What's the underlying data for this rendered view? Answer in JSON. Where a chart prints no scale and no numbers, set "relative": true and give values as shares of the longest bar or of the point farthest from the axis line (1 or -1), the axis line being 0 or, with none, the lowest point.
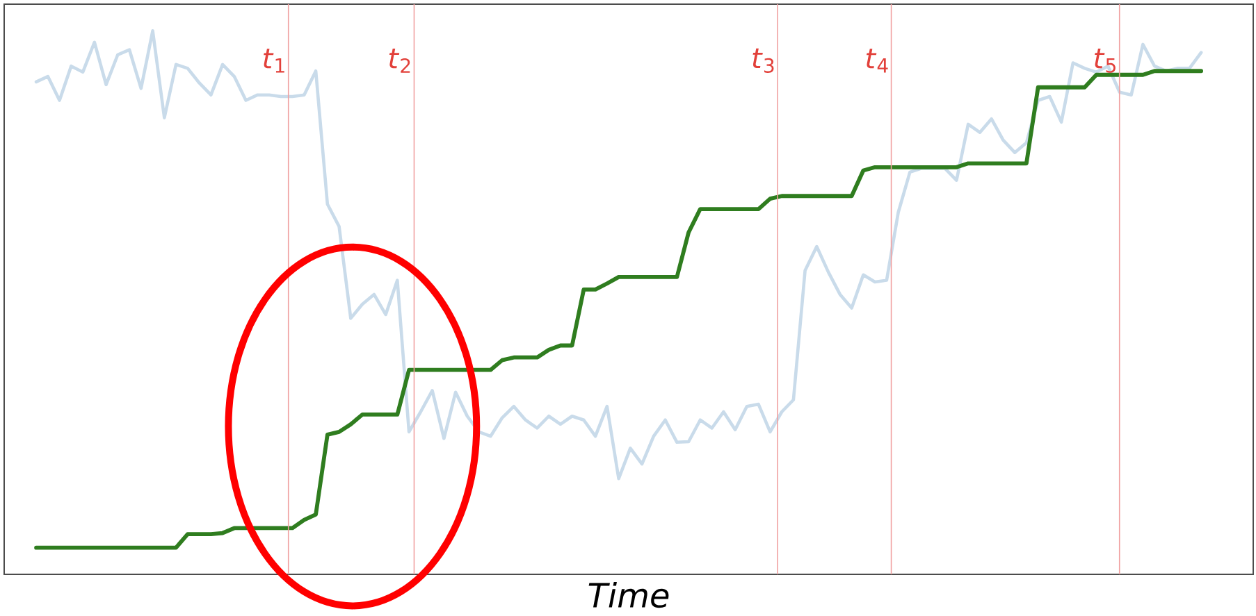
{
  "chart_data": {
    "type": "line",
    "relative": true,
    "xlabel": "Time",
    "tick_labels": false,
    "categories": [
      null,
      null,
      null,
      null,
      null,
      null,
      null,
      null,
      null,
      null,
      null,
      null,
      null,
      null,
      null,
      null,
      null,
      null,
      null,
      null,
      null,
      null,
      null,
      null,
      null,
      null,
      null,
      null,
      null,
      null,
      null,
      null,
      null,
      null,
      null,
      null,
      null,
      null,
      null,
      null,
      null,
      null,
      null,
      null,
      null,
      null,
      null,
      null,
      null,
      null,
      null,
      null,
      null,
      null,
      null,
      null,
      null,
      null,
      null,
      null,
      null,
      null,
      null,
      null,
      null,
      null,
      null,
      null,
      null,
      null,
      null,
      null,
      null,
      null,
      null,
      null,
      null,
      null,
      null,
      null,
      null,
      null,
      null,
      null,
      null,
      null,
      null,
      null,
      null,
      null,
      null,
      null,
      null,
      null,
      null,
      null,
      null,
      null,
      null,
      null,
      null
    ],
    "series": [
      {
        "color": "#c9dbea",
        "values": [
          0.906,
          0.916,
          0.872,
          0.935,
          0.924,
          0.979,
          0.901,
          0.956,
          0.965,
          0.894,
          1,
          0.84,
          0.938,
          0.931,
          0.904,
          0.882,
          0.938,
          0.916,
          0.872,
          0.882,
          0.882,
          0.879,
          0.879,
          0.882,
          0.926,
          0.681,
          0.64,
          0.471,
          0.497,
          0.515,
          0.478,
          0.541,
          0.262,
          0.299,
          0.338,
          0.25,
          0.335,
          0.291,
          0.262,
          0.254,
          0.288,
          0.309,
          0.284,
          0.269,
          0.291,
          0.276,
          0.291,
          0.284,
          0.254,
          0.309,
          0.176,
          0.232,
          0.203,
          0.254,
          0.284,
          0.243,
          0.244,
          0.284,
          0.269,
          0.299,
          0.266,
          0.309,
          0.313,
          0.262,
          0.299,
          0.321,
          0.559,
          0.603,
          0.556,
          0.515,
          0.49,
          0.551,
          0.538,
          0.541,
          0.666,
          0.74,
          0.747,
          0.747,
          0.747,
          0.725,
          0.828,
          0.813,
          0.838,
          0.799,
          0.776,
          0.794,
          0.872,
          0.879,
          0.832,
          0.941,
          0.931,
          0.924,
          0.935,
          0.887,
          0.882,
          0.975,
          0.935,
          0.926,
          0.931,
          0.931,
          0.96
        ]
      },
      {
        "color": "#2f7d1f",
        "values": [
          0.049,
          0.049,
          0.049,
          0.049,
          0.049,
          0.049,
          0.049,
          0.049,
          0.049,
          0.049,
          0.049,
          0.049,
          0.049,
          0.074,
          0.074,
          0.074,
          0.076,
          0.085,
          0.085,
          0.085,
          0.085,
          0.085,
          0.085,
          0.1,
          0.11,
          0.257,
          0.262,
          0.276,
          0.294,
          0.294,
          0.294,
          0.294,
          0.376,
          0.376,
          0.376,
          0.376,
          0.376,
          0.376,
          0.376,
          0.376,
          0.394,
          0.399,
          0.399,
          0.399,
          0.413,
          0.421,
          0.421,
          0.524,
          0.524,
          0.535,
          0.547,
          0.547,
          0.547,
          0.547,
          0.547,
          0.547,
          0.629,
          0.672,
          0.672,
          0.672,
          0.672,
          0.672,
          0.672,
          0.691,
          0.696,
          0.696,
          0.696,
          0.696,
          0.696,
          0.696,
          0.696,
          0.743,
          0.749,
          0.749,
          0.749,
          0.749,
          0.749,
          0.749,
          0.749,
          0.749,
          0.756,
          0.756,
          0.756,
          0.756,
          0.756,
          0.756,
          0.896,
          0.896,
          0.896,
          0.896,
          0.896,
          0.919,
          0.919,
          0.919,
          0.919,
          0.919,
          0.926,
          0.926,
          0.926,
          0.926,
          0.926
        ]
      }
    ],
    "annotations": [
      "*t*$_{1}$",
      "*t*$_{2}$",
      "*t*$_{3}$",
      "*t*$_{4}$",
      "*t*$_{5}$"
    ]
  }
}
